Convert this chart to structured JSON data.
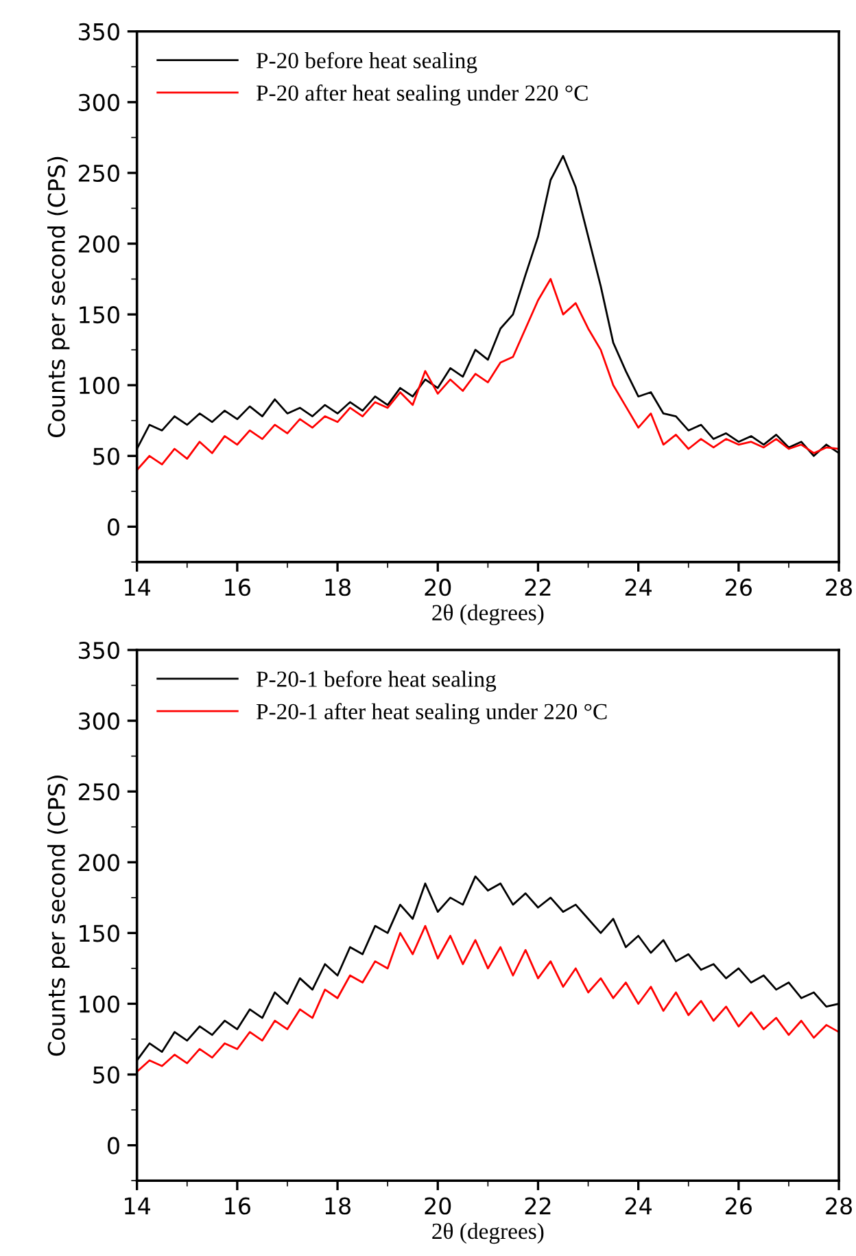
{
  "chart_data": [
    {
      "type": "line",
      "xlabel": "2θ (degrees)",
      "ylabel": "Counts per second (CPS)",
      "xlim": [
        14,
        28
      ],
      "xticks": [
        14,
        16,
        18,
        20,
        22,
        24,
        26,
        28
      ],
      "ylim": [
        -25,
        350
      ],
      "yticks": [
        0,
        50,
        100,
        150,
        200,
        250,
        300,
        350
      ],
      "legend": "top left",
      "grid": false,
      "x": [
        14,
        14.25,
        14.5,
        14.75,
        15,
        15.25,
        15.5,
        15.75,
        16,
        16.25,
        16.5,
        16.75,
        17,
        17.25,
        17.5,
        17.75,
        18,
        18.25,
        18.5,
        18.75,
        19,
        19.25,
        19.5,
        19.75,
        20,
        20.25,
        20.5,
        20.75,
        21,
        21.25,
        21.5,
        21.75,
        22,
        22.25,
        22.5,
        22.75,
        23,
        23.25,
        23.5,
        23.75,
        24,
        24.25,
        24.5,
        24.75,
        25,
        25.25,
        25.5,
        25.75,
        26,
        26.25,
        26.5,
        26.75,
        27,
        27.25,
        27.5,
        27.75,
        28
      ],
      "series": [
        {
          "name": "P-20 before heat sealing",
          "color": "#000000",
          "values": [
            55,
            72,
            68,
            78,
            72,
            80,
            74,
            82,
            76,
            85,
            78,
            90,
            80,
            84,
            78,
            86,
            80,
            88,
            82,
            92,
            86,
            98,
            92,
            104,
            98,
            112,
            106,
            125,
            118,
            140,
            150,
            178,
            205,
            245,
            262,
            240,
            205,
            170,
            130,
            110,
            92,
            95,
            80,
            78,
            68,
            72,
            62,
            66,
            60,
            64,
            58,
            65,
            56,
            60,
            50,
            58,
            52
          ]
        },
        {
          "name": "P-20 after heat sealing under 220 °C",
          "color": "#ff0000",
          "values": [
            40,
            50,
            44,
            55,
            48,
            60,
            52,
            64,
            58,
            68,
            62,
            72,
            66,
            76,
            70,
            78,
            74,
            84,
            78,
            88,
            84,
            95,
            86,
            110,
            94,
            104,
            96,
            108,
            102,
            116,
            120,
            140,
            160,
            175,
            150,
            158,
            140,
            125,
            100,
            85,
            70,
            80,
            58,
            65,
            55,
            62,
            56,
            62,
            58,
            60,
            56,
            62,
            55,
            58,
            52,
            56,
            55
          ]
        }
      ]
    },
    {
      "type": "line",
      "xlabel": "2θ (degrees)",
      "ylabel": "Counts per second (CPS)",
      "xlim": [
        14,
        28
      ],
      "xticks": [
        14,
        16,
        18,
        20,
        22,
        24,
        26,
        28
      ],
      "ylim": [
        -25,
        350
      ],
      "yticks": [
        0,
        50,
        100,
        150,
        200,
        250,
        300,
        350
      ],
      "legend": "top left",
      "grid": false,
      "x": [
        14,
        14.25,
        14.5,
        14.75,
        15,
        15.25,
        15.5,
        15.75,
        16,
        16.25,
        16.5,
        16.75,
        17,
        17.25,
        17.5,
        17.75,
        18,
        18.25,
        18.5,
        18.75,
        19,
        19.25,
        19.5,
        19.75,
        20,
        20.25,
        20.5,
        20.75,
        21,
        21.25,
        21.5,
        21.75,
        22,
        22.25,
        22.5,
        22.75,
        23,
        23.25,
        23.5,
        23.75,
        24,
        24.25,
        24.5,
        24.75,
        25,
        25.25,
        25.5,
        25.75,
        26,
        26.25,
        26.5,
        26.75,
        27,
        27.25,
        27.5,
        27.75,
        28
      ],
      "series": [
        {
          "name": "P-20-1 before heat sealing",
          "color": "#000000",
          "values": [
            60,
            72,
            66,
            80,
            74,
            84,
            78,
            88,
            82,
            96,
            90,
            108,
            100,
            118,
            110,
            128,
            120,
            140,
            135,
            155,
            150,
            170,
            160,
            185,
            165,
            175,
            170,
            190,
            180,
            185,
            170,
            178,
            168,
            175,
            165,
            170,
            160,
            150,
            160,
            140,
            148,
            136,
            145,
            130,
            135,
            124,
            128,
            118,
            125,
            115,
            120,
            110,
            115,
            104,
            108,
            98,
            100
          ]
        },
        {
          "name": "P-20-1 after heat sealing under 220 °C",
          "color": "#ff0000",
          "values": [
            52,
            60,
            56,
            64,
            58,
            68,
            62,
            72,
            68,
            80,
            74,
            88,
            82,
            96,
            90,
            110,
            104,
            120,
            115,
            130,
            125,
            150,
            135,
            155,
            132,
            148,
            128,
            145,
            125,
            140,
            120,
            138,
            118,
            130,
            112,
            125,
            108,
            118,
            104,
            115,
            100,
            112,
            95,
            108,
            92,
            102,
            88,
            98,
            84,
            94,
            82,
            90,
            78,
            88,
            76,
            85,
            80
          ]
        }
      ]
    }
  ]
}
